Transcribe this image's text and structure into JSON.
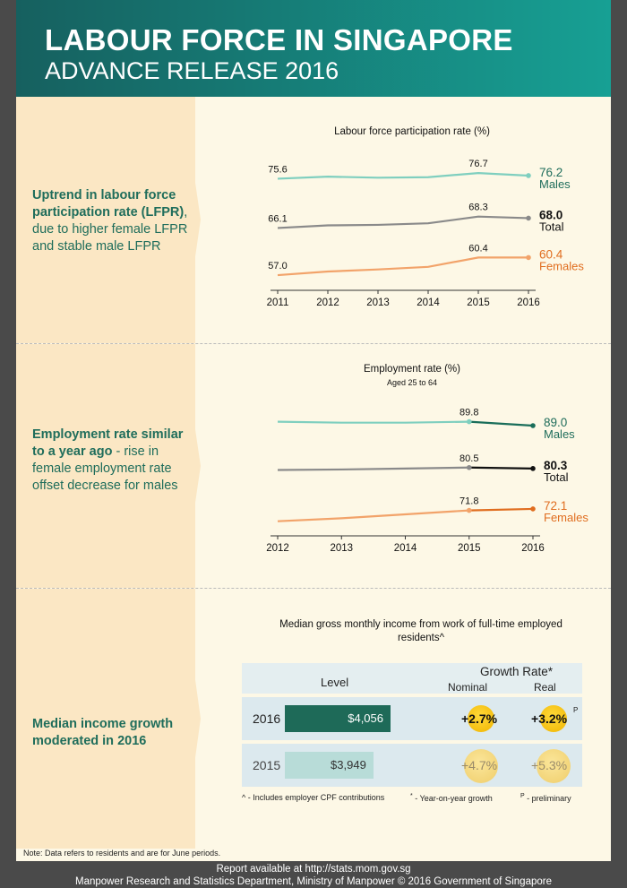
{
  "header": {
    "title": "LABOUR FORCE IN SINGAPORE",
    "subtitle": "ADVANCE RELEASE 2016"
  },
  "sections": {
    "lfpr": {
      "text_bold": "Uptrend in labour force participation rate (LFPR)",
      "text_rest": ", due to higher female LFPR and stable male LFPR"
    },
    "employment": {
      "text_bold": "Employment rate similar to a year ago",
      "text_rest": " - rise in female employment rate offset decrease for males"
    },
    "income": {
      "text_bold": "Median income growth moderated in 2016"
    }
  },
  "colors": {
    "males": "#7fcfbf",
    "males_dark": "#1a6e5a",
    "total": "#8a8a8a",
    "total_dark": "#111111",
    "females": "#f2a36a",
    "females_dark": "#e06d1f",
    "accent": "#1f6d5b"
  },
  "chart_data": [
    {
      "type": "line",
      "title": "Labour force participation rate (%)",
      "x": [
        "2011",
        "2012",
        "2013",
        "2014",
        "2015",
        "2016"
      ],
      "ylim": [
        52,
        80
      ],
      "series": [
        {
          "name": "Males",
          "values": [
            75.6,
            76.0,
            75.8,
            75.9,
            76.7,
            76.2
          ],
          "labels": {
            "0": "75.6",
            "4": "76.7"
          },
          "end_label": "76.2"
        },
        {
          "name": "Total",
          "values": [
            66.1,
            66.6,
            66.7,
            67.0,
            68.3,
            68.0
          ],
          "labels": {
            "0": "66.1",
            "4": "68.3"
          },
          "end_label": "68.0"
        },
        {
          "name": "Females",
          "values": [
            57.0,
            57.7,
            58.1,
            58.6,
            60.4,
            60.4
          ],
          "labels": {
            "0": "57.0",
            "4": "60.4"
          },
          "end_label": "60.4"
        }
      ]
    },
    {
      "type": "line",
      "title": "Employment rate (%)",
      "subtitle": "Aged 25 to 64",
      "x": [
        "2012",
        "2013",
        "2014",
        "2015",
        "2016"
      ],
      "ylim": [
        65,
        95
      ],
      "series": [
        {
          "name": "Males",
          "values": [
            89.8,
            89.6,
            89.6,
            89.8,
            89.0
          ],
          "labels": {
            "3": "89.8"
          },
          "end_label": "89.0"
        },
        {
          "name": "Total",
          "values": [
            80.0,
            80.1,
            80.3,
            80.5,
            80.3
          ],
          "labels": {
            "3": "80.5"
          },
          "end_label": "80.3"
        },
        {
          "name": "Females",
          "values": [
            69.6,
            70.2,
            71.0,
            71.8,
            72.1
          ],
          "labels": {
            "3": "71.8"
          },
          "end_label": "72.1"
        }
      ]
    },
    {
      "type": "table",
      "title": "Median gross monthly income from work of full-time employed residents^",
      "columns": [
        "Level",
        "Growth Rate*",
        "Nominal",
        "Real"
      ],
      "rows": [
        {
          "year": "2016",
          "level": "$4,056",
          "level_value": 4056,
          "nominal": "+2.7%",
          "real": "+3.2%",
          "real_sup": "P"
        },
        {
          "year": "2015",
          "level": "$3,949",
          "level_value": 3949,
          "nominal": "+4.7%",
          "real": "+5.3%"
        }
      ]
    }
  ],
  "footnotes": {
    "caret": "^ - Includes employer CPF contributions",
    "star_sym": "*",
    "star": " - Year-on-year growth",
    "p_sym": "P",
    "p": " - preliminary",
    "note": "Note: Data refers to residents and are for June periods."
  },
  "footer": {
    "line1": "Report available at http://stats.mom.gov.sg",
    "line2": "Manpower Research and Statistics Department, Ministry of Manpower © 2016 Government of Singapore"
  }
}
